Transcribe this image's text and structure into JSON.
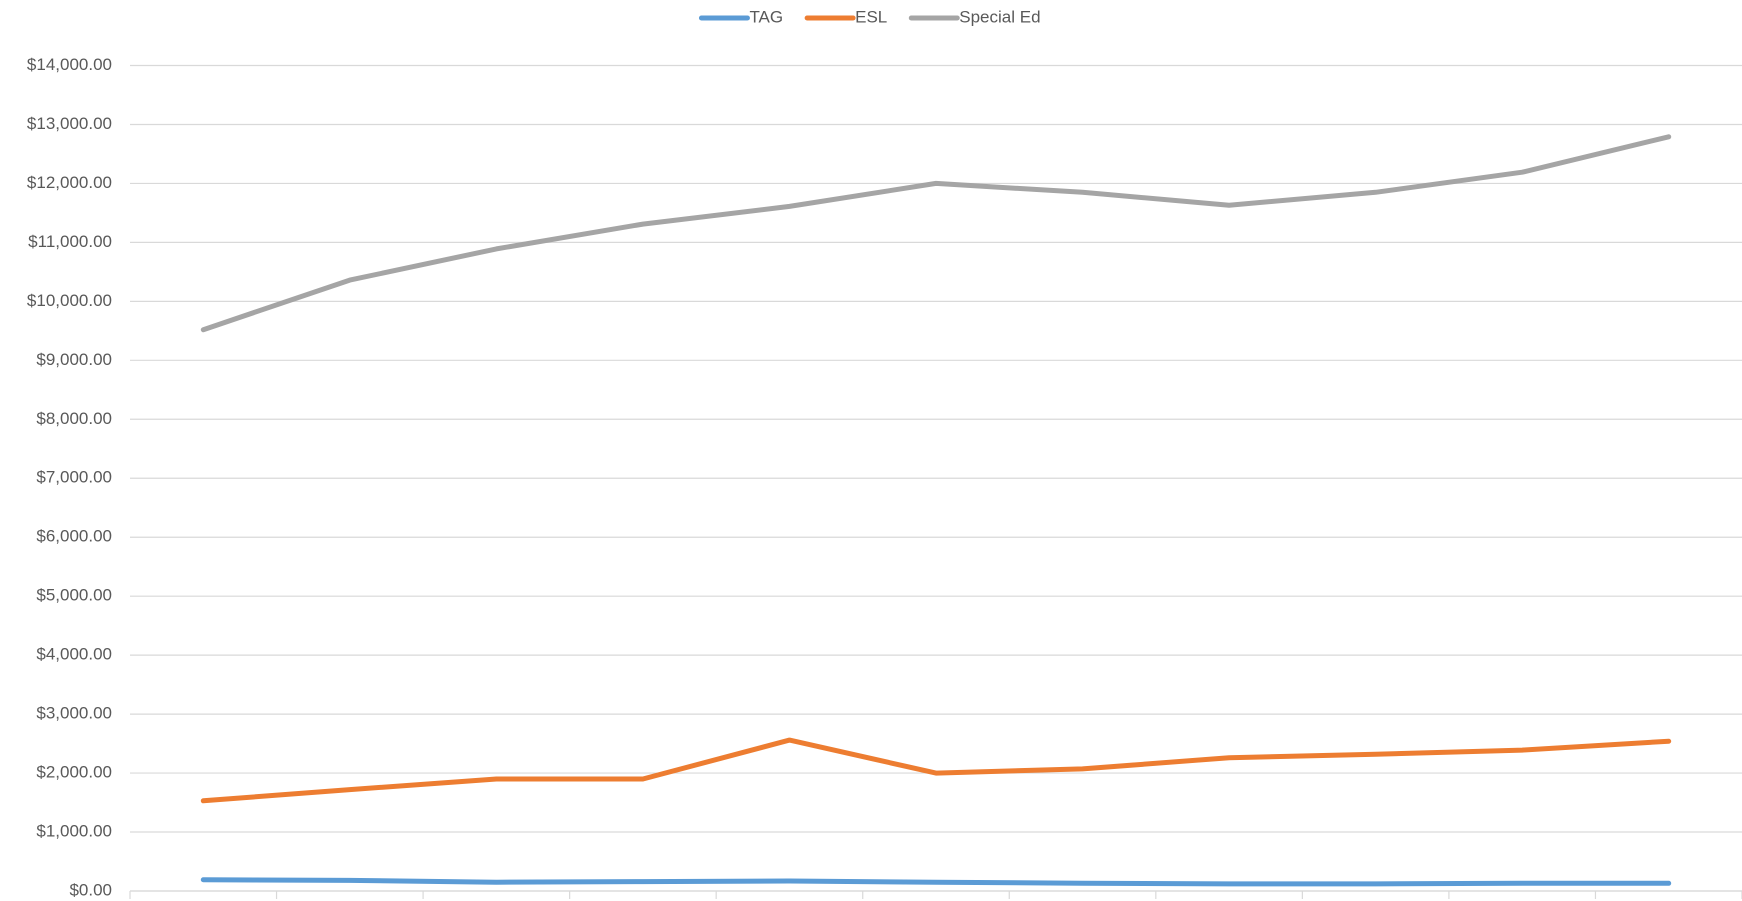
{
  "chart_data": {
    "type": "line",
    "categories": [
      null,
      null,
      null,
      null,
      null,
      null,
      null,
      null,
      null,
      null,
      null
    ],
    "series": [
      {
        "name": "TAG",
        "color": "#5b9bd5",
        "values": [
          190,
          180,
          150,
          160,
          170,
          150,
          130,
          120,
          120,
          130,
          130
        ]
      },
      {
        "name": "ESL",
        "color": "#ed7d31",
        "values": [
          1530,
          1720,
          1900,
          1900,
          2560,
          2000,
          2070,
          2260,
          2320,
          2390,
          2540
        ]
      },
      {
        "name": "Special Ed",
        "color": "#a5a5a5",
        "values": [
          9520,
          10360,
          10890,
          11310,
          11610,
          12000,
          11850,
          11630,
          11850,
          12190,
          12790
        ]
      }
    ],
    "ylim": [
      0,
      14000
    ],
    "yticks": [
      {
        "value": 0,
        "label": "$0.00"
      },
      {
        "value": 1000,
        "label": "$1,000.00"
      },
      {
        "value": 2000,
        "label": "$2,000.00"
      },
      {
        "value": 3000,
        "label": "$3,000.00"
      },
      {
        "value": 4000,
        "label": "$4,000.00"
      },
      {
        "value": 5000,
        "label": "$5,000.00"
      },
      {
        "value": 6000,
        "label": "$6,000.00"
      },
      {
        "value": 7000,
        "label": "$7,000.00"
      },
      {
        "value": 8000,
        "label": "$8,000.00"
      },
      {
        "value": 9000,
        "label": "$9,000.00"
      },
      {
        "value": 10000,
        "label": "$10,000.00"
      },
      {
        "value": 11000,
        "label": "$11,000.00"
      },
      {
        "value": 12000,
        "label": "$12,000.00"
      },
      {
        "value": 13000,
        "label": "$13,000.00"
      },
      {
        "value": 14000,
        "label": "$14,000.00"
      }
    ],
    "grid": true,
    "legend": "top"
  }
}
